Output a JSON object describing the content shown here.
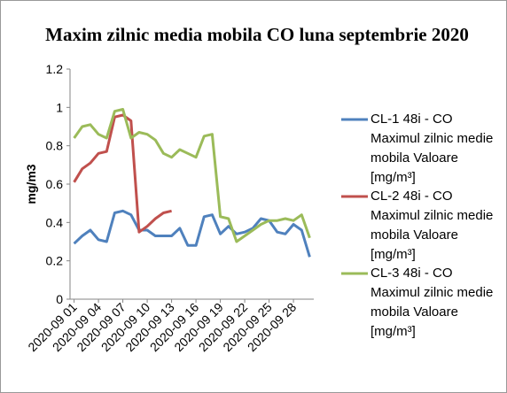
{
  "chart_data": {
    "type": "line",
    "title": "Maxim zilnic media mobila CO luna septembrie 2020",
    "y_label": "mg/m3",
    "categories": [
      "2020-09 01",
      null,
      null,
      "2020-09 04",
      null,
      null,
      "2020-09 07",
      null,
      null,
      "2020-09 10",
      null,
      null,
      "2020-09 13",
      null,
      null,
      "2020-09 16",
      null,
      null,
      "2020-09 19",
      null,
      null,
      "2020-09 22",
      null,
      null,
      "2020-09 25",
      null,
      null,
      "2020-09 28",
      null,
      null
    ],
    "series": [
      {
        "name": "CL-1 48i - CO Maximul zilnic medie mobila Valoare [mg/m³]",
        "color": "#4f81bd",
        "values": [
          0.29,
          0.33,
          0.36,
          0.31,
          0.3,
          0.45,
          0.46,
          0.44,
          0.36,
          0.36,
          0.33,
          0.33,
          0.33,
          0.37,
          0.28,
          0.28,
          0.43,
          0.44,
          0.34,
          0.38,
          0.34,
          0.35,
          0.37,
          0.42,
          0.41,
          0.35,
          0.34,
          0.39,
          0.36,
          0.22
        ]
      },
      {
        "name": "CL-2 48i - CO Maximul zilnic medie mobila Valoare [mg/m³]",
        "color": "#c0504d",
        "values": [
          0.61,
          0.68,
          0.71,
          0.76,
          0.77,
          0.95,
          0.96,
          0.93,
          0.35,
          0.38,
          0.42,
          0.45,
          0.46,
          null,
          null,
          null,
          null,
          null,
          null,
          null,
          null,
          null,
          null,
          null,
          null,
          null,
          null,
          null,
          null,
          null
        ]
      },
      {
        "name": "CL-3 48i - CO Maximul zilnic medie mobila Valoare [mg/m³]",
        "color": "#9bbb59",
        "values": [
          0.84,
          0.9,
          0.91,
          0.86,
          0.84,
          0.98,
          0.99,
          0.84,
          0.87,
          0.86,
          0.83,
          0.76,
          0.74,
          0.78,
          0.76,
          0.74,
          0.85,
          0.86,
          0.43,
          0.42,
          0.3,
          0.33,
          0.36,
          0.39,
          0.41,
          0.41,
          0.42,
          0.41,
          0.44,
          0.32
        ]
      }
    ],
    "ylim": [
      0,
      1.2
    ],
    "yticks": [
      0,
      0.2,
      0.4,
      0.6,
      0.8,
      1,
      1.2
    ],
    "legend": "right"
  }
}
